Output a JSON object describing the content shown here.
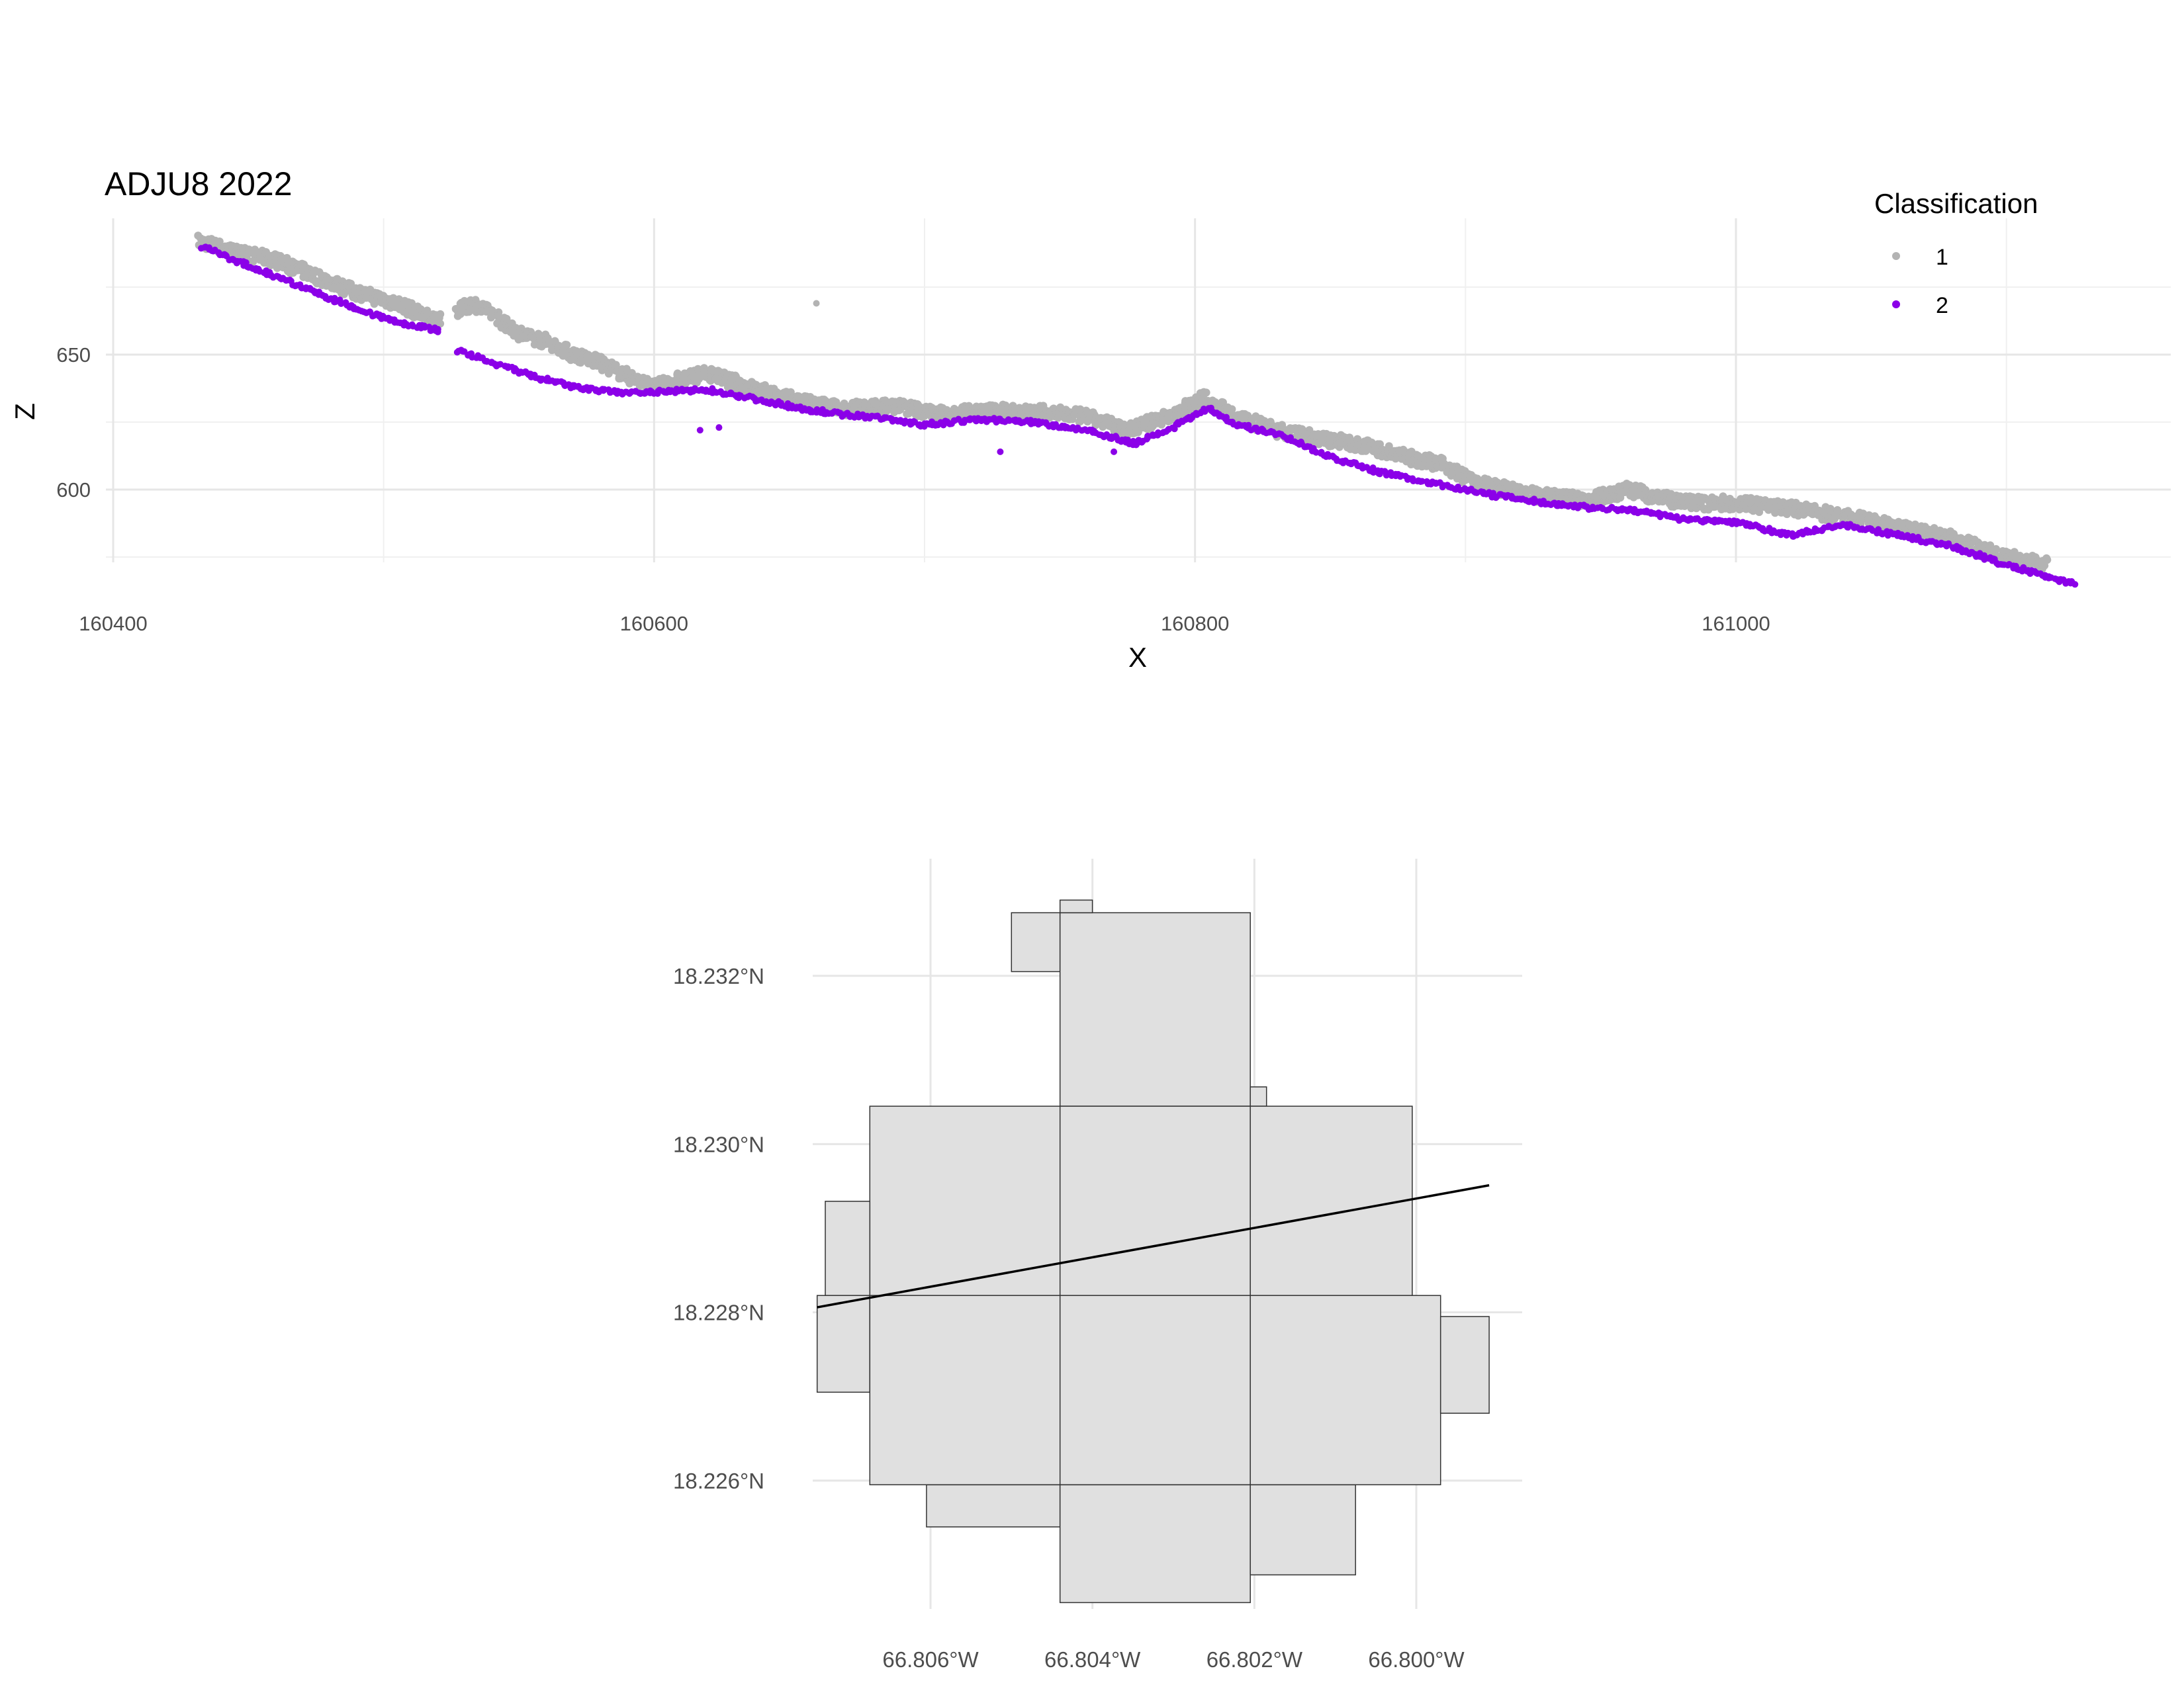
{
  "chart_data": [
    {
      "type": "scatter",
      "title": "ADJU8 2022",
      "xlabel": "X",
      "ylabel": "Z",
      "xlim": [
        160400,
        161130
      ],
      "ylim": [
        575,
        695
      ],
      "x_ticks": [
        160400,
        160600,
        160800,
        161000
      ],
      "y_ticks": [
        600,
        650
      ],
      "grid": true,
      "legend": {
        "title": "Classification",
        "placement": "top-right",
        "entries": [
          {
            "label": "1",
            "color": "#b3b3b3"
          },
          {
            "label": "2",
            "color": "#8b00e8"
          }
        ]
      },
      "series": [
        {
          "name": "1",
          "color": "#b3b3b3",
          "profile": [
            [
              160432,
              692
            ],
            [
              160445,
              688
            ],
            [
              160460,
              685
            ],
            [
              160475,
              679
            ],
            [
              160490,
              673
            ],
            [
              160505,
              669
            ],
            [
              160518,
              663
            ],
            [
              160529,
              667
            ],
            [
              160533,
              669
            ],
            [
              160540,
              665
            ],
            [
              160550,
              658
            ],
            [
              160560,
              655
            ],
            [
              160570,
              650
            ],
            [
              160580,
              647
            ],
            [
              160590,
              642
            ],
            [
              160600,
              638
            ],
            [
              160610,
              641
            ],
            [
              160620,
              643
            ],
            [
              160632,
              639
            ],
            [
              160645,
              635
            ],
            [
              160657,
              632
            ],
            [
              160670,
              630
            ],
            [
              160690,
              631
            ],
            [
              160705,
              628
            ],
            [
              160720,
              629
            ],
            [
              160740,
              629
            ],
            [
              160760,
              627
            ],
            [
              160775,
              622
            ],
            [
              160790,
              627
            ],
            [
              160803,
              634
            ],
            [
              160815,
              627
            ],
            [
              160830,
              622
            ],
            [
              160845,
              619
            ],
            [
              160860,
              617
            ],
            [
              160875,
              613
            ],
            [
              160892,
              609
            ],
            [
              160905,
              602
            ],
            [
              160925,
              598
            ],
            [
              160945,
              596
            ],
            [
              160960,
              600
            ],
            [
              160980,
              595
            ],
            [
              161000,
              595
            ],
            [
              161020,
              593
            ],
            [
              161040,
              590
            ],
            [
              161060,
              586
            ],
            [
              161080,
              582
            ],
            [
              161100,
              575
            ],
            [
              161115,
              572
            ]
          ],
          "outliers": [
            [
              160660,
              669
            ]
          ]
        },
        {
          "name": "2",
          "color": "#8b00e8",
          "profile": [
            [
              160433,
              690
            ],
            [
              160450,
              683
            ],
            [
              160470,
              675
            ],
            [
              160490,
              667
            ],
            [
              160505,
              662
            ],
            [
              160520,
              659
            ],
            [
              160526,
              652
            ],
            [
              160540,
              647
            ],
            [
              160555,
              642
            ],
            [
              160570,
              638
            ],
            [
              160585,
              636
            ],
            [
              160600,
              636
            ],
            [
              160620,
              637
            ],
            [
              160640,
              633
            ],
            [
              160655,
              630
            ],
            [
              160668,
              628
            ],
            [
              160680,
              627
            ],
            [
              160700,
              624
            ],
            [
              160720,
              626
            ],
            [
              160740,
              625
            ],
            [
              160760,
              622
            ],
            [
              160778,
              617
            ],
            [
              160792,
              623
            ],
            [
              160805,
              630
            ],
            [
              160815,
              624
            ],
            [
              160830,
              621
            ],
            [
              160850,
              612
            ],
            [
              160870,
              606
            ],
            [
              160890,
              602
            ],
            [
              160910,
              598
            ],
            [
              160930,
              595
            ],
            [
              160950,
              593
            ],
            [
              160965,
              592
            ],
            [
              160980,
              589
            ],
            [
              161000,
              588
            ],
            [
              161020,
              583
            ],
            [
              161040,
              587
            ],
            [
              161060,
              583
            ],
            [
              161080,
              579
            ],
            [
              161100,
              572
            ],
            [
              161118,
              567
            ],
            [
              161126,
              565
            ]
          ],
          "outliers": [
            [
              160617,
              622
            ],
            [
              160624,
              623
            ],
            [
              160728,
              614
            ],
            [
              160770,
              614
            ]
          ]
        }
      ]
    },
    {
      "type": "map",
      "x_ticks": [
        "66.806°W",
        "66.804°W",
        "66.802°W",
        "66.800°W"
      ],
      "y_ticks": [
        "18.232°N",
        "18.230°N",
        "18.228°N",
        "18.226°N"
      ],
      "xlim": [
        -66.8075,
        -66.7992
      ],
      "ylim": [
        18.2247,
        18.2332
      ],
      "grid": true,
      "tile_fill": "#e0e0e0",
      "tiles_lon_lat": [
        [
          -66.805,
          -66.8044,
          18.23205,
          18.23275
        ],
        [
          -66.8044,
          -66.80205,
          18.23045,
          18.23275
        ],
        [
          -66.8044,
          -66.804,
          18.23275,
          18.2329
        ],
        [
          -66.80205,
          -66.80185,
          18.23045,
          18.23068
        ],
        [
          -66.80675,
          -66.8044,
          18.2282,
          18.23045
        ],
        [
          -66.8044,
          -66.80205,
          18.2282,
          18.23045
        ],
        [
          -66.80205,
          -66.80005,
          18.2282,
          18.23045
        ],
        [
          -66.8073,
          -66.80675,
          18.2282,
          18.22932
        ],
        [
          -66.8074,
          -66.80675,
          18.22705,
          18.2282
        ],
        [
          -66.80675,
          -66.8044,
          18.22595,
          18.2282
        ],
        [
          -66.8044,
          -66.80205,
          18.22595,
          18.2282
        ],
        [
          -66.80205,
          -66.7997,
          18.22595,
          18.2282
        ],
        [
          -66.7997,
          -66.7991,
          18.2268,
          18.22795
        ],
        [
          -66.80605,
          -66.8044,
          18.22545,
          18.22595
        ],
        [
          -66.8044,
          -66.80205,
          18.22455,
          18.22595
        ],
        [
          -66.80205,
          -66.80075,
          18.22488,
          18.22595
        ]
      ],
      "transect_line_lon_lat": [
        [
          -66.8074,
          18.22806
        ],
        [
          -66.7991,
          18.22951
        ]
      ]
    }
  ]
}
